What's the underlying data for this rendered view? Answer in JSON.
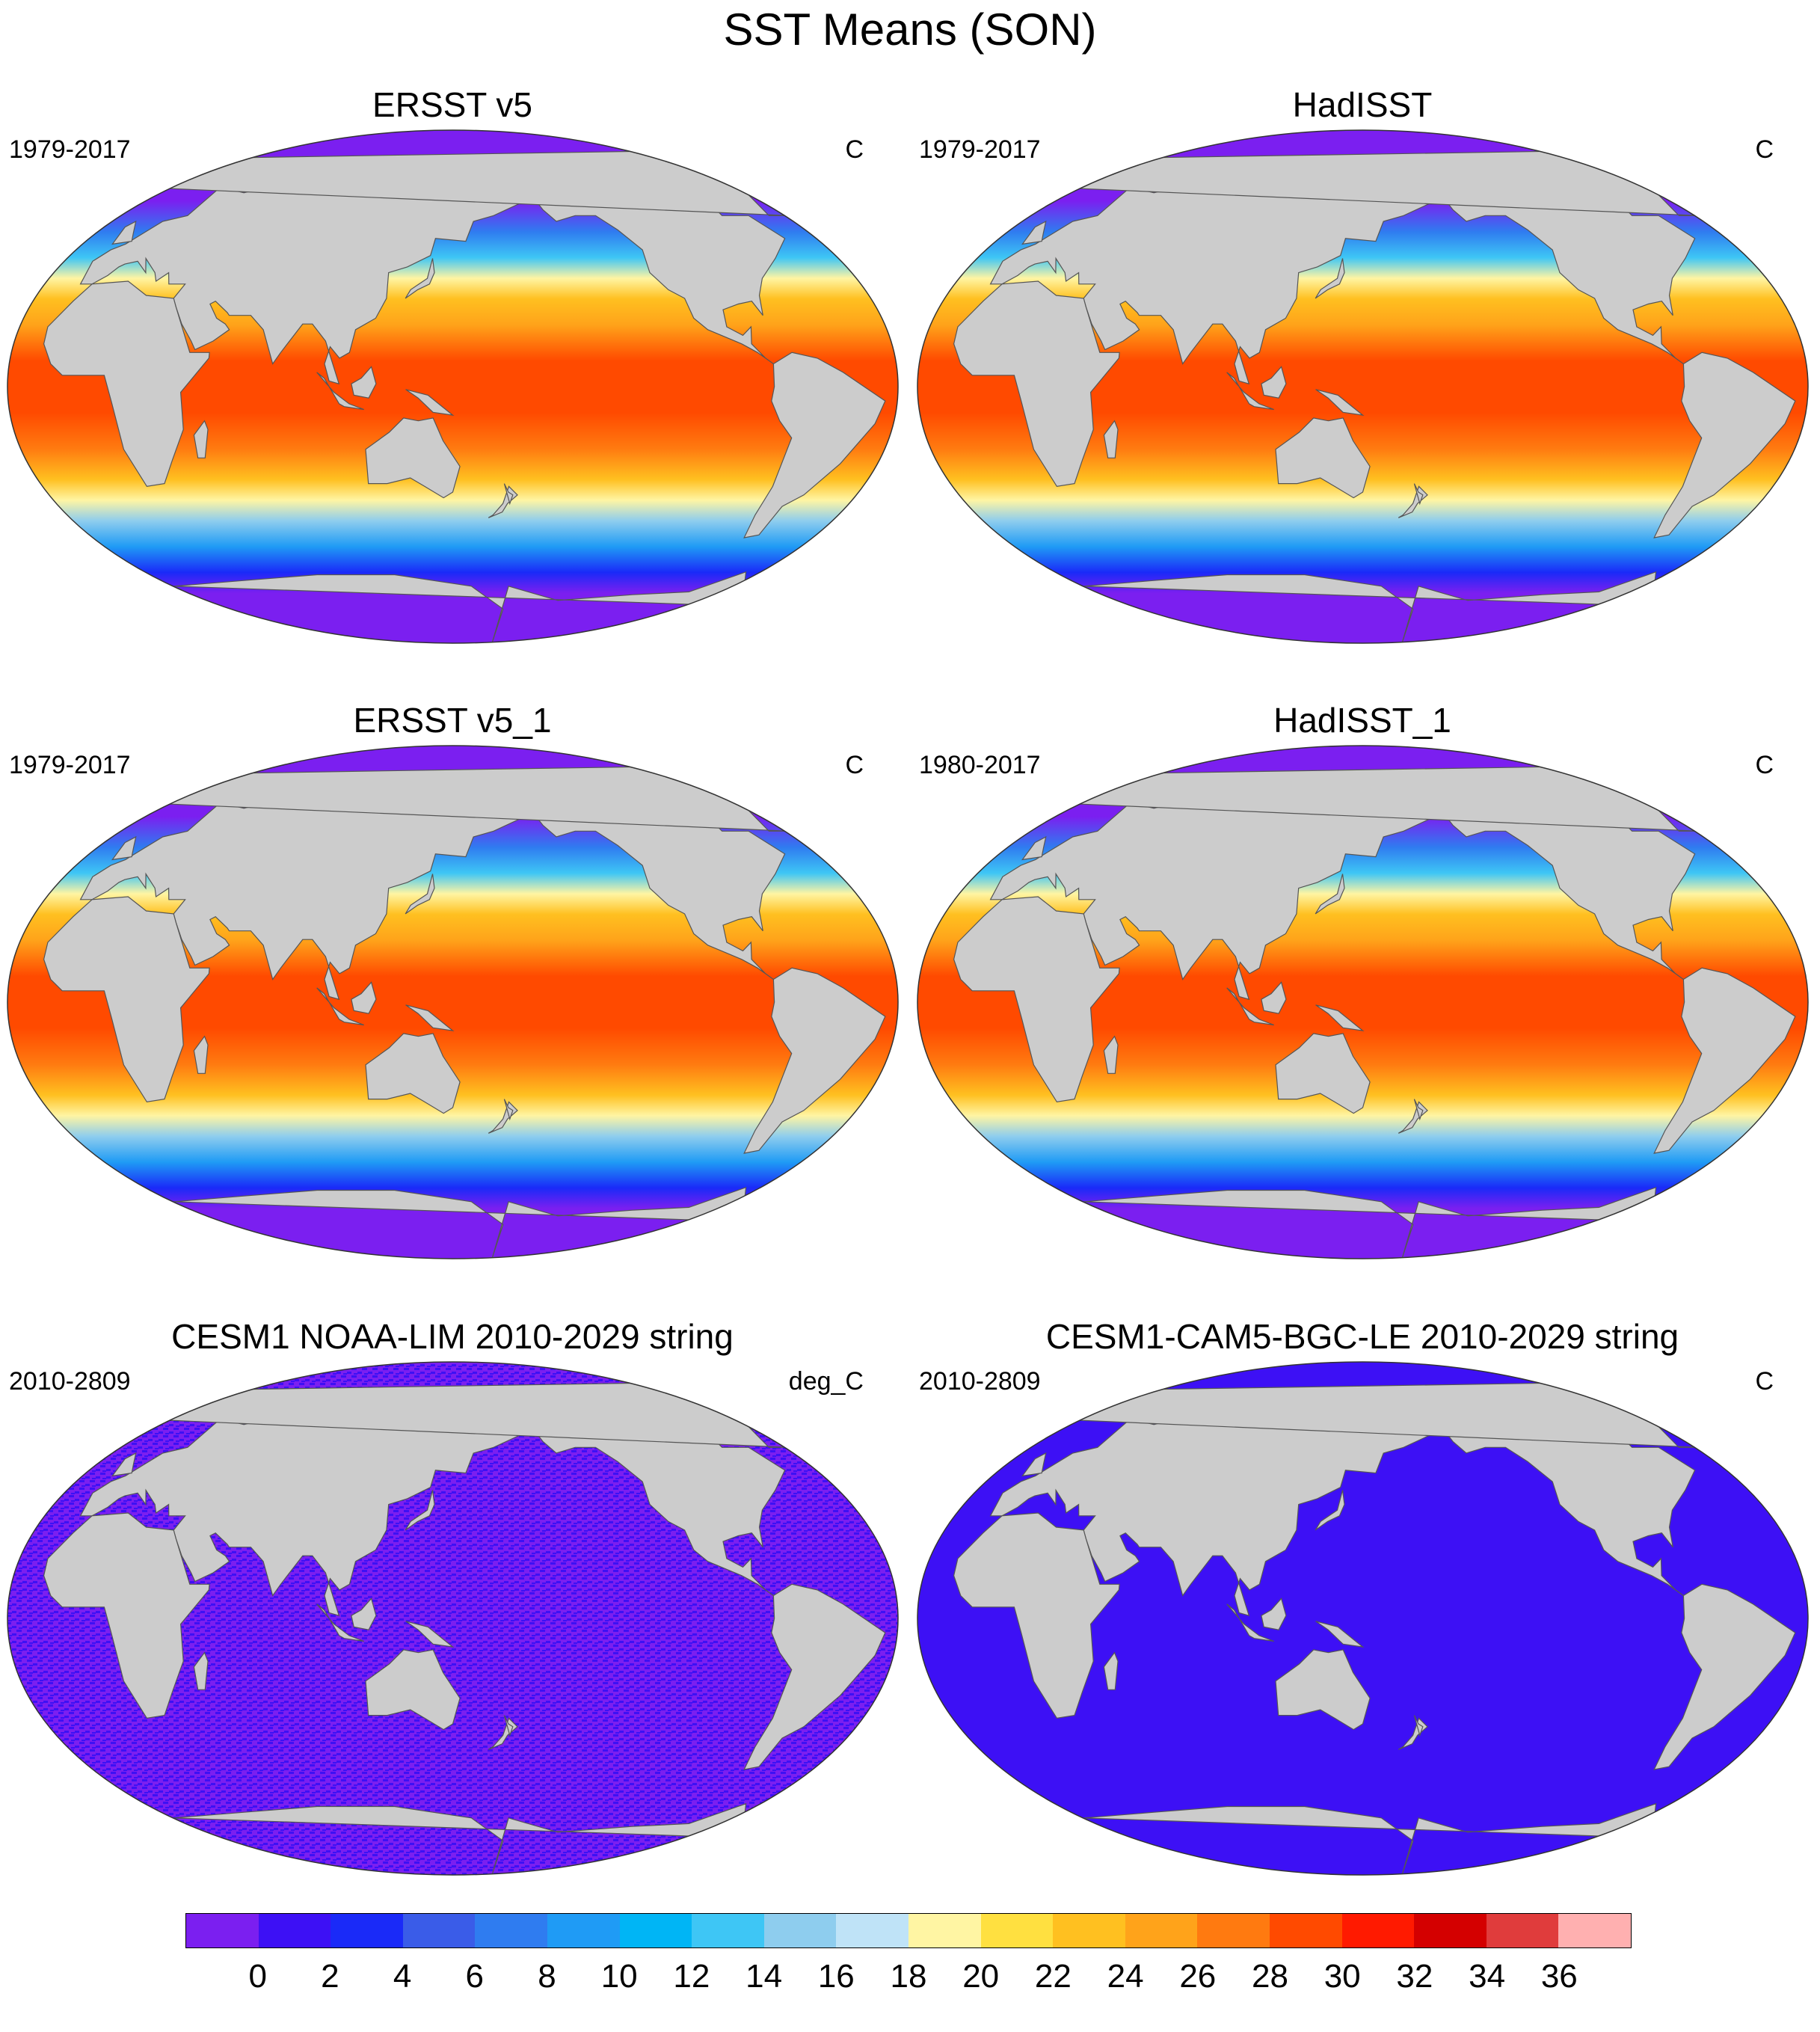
{
  "title": "SST Means (SON)",
  "panels": [
    {
      "title": "ERSST v5",
      "years": "1979-2017",
      "units": "C",
      "style": "warm"
    },
    {
      "title": "HadISST",
      "years": "1979-2017",
      "units": "C",
      "style": "warm"
    },
    {
      "title": "ERSST v5_1",
      "years": "1979-2017",
      "units": "C",
      "style": "warm"
    },
    {
      "title": "HadISST_1",
      "years": "1980-2017",
      "units": "C",
      "style": "warm"
    },
    {
      "title": "CESM1 NOAA-LIM 2010-2029 string",
      "years": "2010-2809",
      "units": "deg_C",
      "style": "cold-speckle"
    },
    {
      "title": "CESM1-CAM5-BGC-LE 2010-2029 string",
      "years": "2010-2809",
      "units": "C",
      "style": "cold-blue"
    }
  ],
  "colorbar": {
    "colors": [
      "#7b1ff0",
      "#3d10f5",
      "#1a2af8",
      "#3a5ce8",
      "#2f7cf0",
      "#1f9bf5",
      "#00b5f5",
      "#3ec6f5",
      "#8ecdee",
      "#bfe3f7",
      "#fff5a3",
      "#ffe040",
      "#ffc020",
      "#ffa31a",
      "#ff7a10",
      "#ff4a00",
      "#ff1a00",
      "#d40000",
      "#e03c3c",
      "#ffb0b0"
    ],
    "labels": [
      "0",
      "2",
      "4",
      "6",
      "8",
      "10",
      "12",
      "14",
      "16",
      "18",
      "20",
      "22",
      "24",
      "26",
      "28",
      "30",
      "32",
      "34",
      "36"
    ]
  },
  "land_color": "#cccccc"
}
